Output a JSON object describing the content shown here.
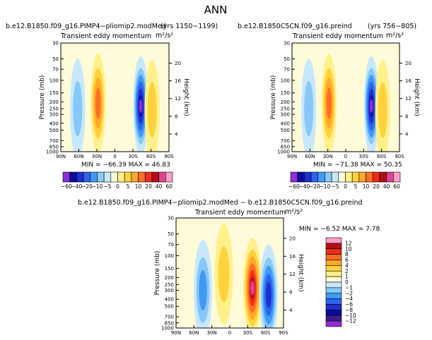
{
  "page_title": "ANN",
  "panels": [
    {
      "id": "left",
      "header_left": "b.e12.B1850.f09_g16.PIMP4−pliomip2.modMed",
      "header_right": "(yrs 1150−1199)",
      "subtitle": "Transient eddy momentum",
      "units": "m²/s²",
      "stats": "MIN = −66.39   MAX =  46.83"
    },
    {
      "id": "right",
      "header_left": "b.e12.B1850C5CN.f09_g16.preind",
      "header_right": "(yrs 756−805)",
      "subtitle": "Transient eddy momentum",
      "units": "m²/s²",
      "stats": "MIN = −71.38   MAX =  50.35"
    },
    {
      "id": "diff",
      "header_left": "b.e12.B1850.f09_g16.PIMP4−pliomip2.modMed  −  b.e12.B1850C5CN.f09_g16.preind",
      "header_right": "",
      "subtitle": "Transient eddy momentum",
      "units": "m²/s²",
      "stats": "MIN =  −6.52   MAX =   7.78"
    }
  ],
  "axes": {
    "ylabel": "Pressure (mb)",
    "y2label": "Height (km)",
    "xticks": [
      "90N",
      "60N",
      "30N",
      "0",
      "30S",
      "60S",
      "90S"
    ],
    "pressure_ticks": [
      "30",
      "50",
      "70",
      "100",
      "150",
      "200",
      "250",
      "300",
      "400",
      "500",
      "700",
      "850",
      "1000"
    ],
    "height_ticks": [
      "20",
      "16",
      "12",
      "8",
      "4"
    ]
  },
  "colorbar_top": {
    "labels": [
      "−60",
      "−40",
      "−20",
      "−10",
      "−5",
      "0",
      "5",
      "10",
      "20",
      "40",
      "60"
    ],
    "colors": [
      "#8e2dd8",
      "#0a0a9c",
      "#1c2fcf",
      "#2e63ee",
      "#3f99f5",
      "#86c8f9",
      "#c7e8fb",
      "#fffbd9",
      "#fff08a",
      "#ffd23c",
      "#ffa82b",
      "#ff6d25",
      "#ec2c1d",
      "#b30e14",
      "#e04090",
      "#ff9fc8"
    ]
  },
  "colorbar_diff": {
    "labels": [
      "12",
      "10",
      "8",
      "6",
      "4",
      "2",
      "1",
      "0",
      "−1",
      "−2",
      "−4",
      "−6",
      "−8",
      "−10",
      "−12"
    ],
    "colors": [
      "#ff9fc8",
      "#b30e14",
      "#ec2c1d",
      "#ff6d25",
      "#ffa82b",
      "#ffd23c",
      "#fff08a",
      "#fffbd9",
      "#c7e8fb",
      "#86c8f9",
      "#3f99f5",
      "#2e63ee",
      "#1c2fcf",
      "#0a0a9c",
      "#3a1f8a",
      "#8e2dd8"
    ]
  },
  "chart_data": [
    {
      "type": "heatmap",
      "title": "Transient eddy momentum",
      "units": "m²/s²",
      "xlabel": "",
      "ylabel": "Pressure (mb)",
      "y2label": "Height (km)",
      "x_range": [
        "90N",
        "90S"
      ],
      "y_range_mb": [
        1000,
        30
      ],
      "min": -66.39,
      "max": 46.83,
      "features": [
        {
          "lat": 28,
          "p_mb": 210,
          "value": 46.83,
          "sign": "positive"
        },
        {
          "lat": -43,
          "p_mb": 230,
          "value": -66.39,
          "sign": "negative"
        },
        {
          "lat": 62,
          "p_mb": 250,
          "value": -10,
          "sign": "negative"
        },
        {
          "lat": -62,
          "p_mb": 260,
          "value": 20,
          "sign": "positive"
        }
      ]
    },
    {
      "type": "heatmap",
      "title": "Transient eddy momentum",
      "units": "m²/s²",
      "xlabel": "",
      "ylabel": "Pressure (mb)",
      "y2label": "Height (km)",
      "x_range": [
        "90N",
        "90S"
      ],
      "y_range_mb": [
        1000,
        30
      ],
      "min": -71.38,
      "max": 50.35,
      "features": [
        {
          "lat": 28,
          "p_mb": 210,
          "value": 50.35,
          "sign": "positive"
        },
        {
          "lat": -43,
          "p_mb": 230,
          "value": -71.38,
          "sign": "negative"
        },
        {
          "lat": 62,
          "p_mb": 250,
          "value": -10,
          "sign": "negative"
        },
        {
          "lat": -62,
          "p_mb": 260,
          "value": 25,
          "sign": "positive"
        }
      ]
    },
    {
      "type": "heatmap",
      "title": "Transient eddy momentum",
      "units": "m²/s²",
      "xlabel": "",
      "ylabel": "Pressure (mb)",
      "y2label": "Height (km)",
      "x_range": [
        "90N",
        "90S"
      ],
      "y_range_mb": [
        1000,
        30
      ],
      "min": -6.52,
      "max": 7.78,
      "features": [
        {
          "lat": -38,
          "p_mb": 280,
          "value": 7.78,
          "sign": "positive"
        },
        {
          "lat": 45,
          "p_mb": 300,
          "value": -4,
          "sign": "negative"
        },
        {
          "lat": -65,
          "p_mb": 350,
          "value": -6.52,
          "sign": "negative"
        },
        {
          "lat": 10,
          "p_mb": 180,
          "value": 2,
          "sign": "positive"
        }
      ]
    }
  ]
}
